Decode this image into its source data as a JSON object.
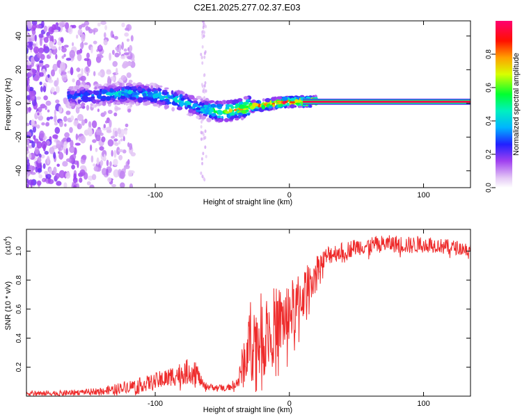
{
  "title": "C2E1.2025.277.02.37.E03",
  "colors": {
    "snr_line": "#ee2b2b",
    "colormap": [
      "#ffffff",
      "#d9a8f0",
      "#7a00e6",
      "#2020ff",
      "#00d8ff",
      "#00ff40",
      "#f0ff00",
      "#ff7a00",
      "#ff0000",
      "#ff0080"
    ]
  },
  "chart_data": [
    {
      "type": "heatmap",
      "title": "C2E1.2025.277.02.37.E03",
      "xlabel": "Height of straight line (km)",
      "ylabel": "Frequency (Hz)",
      "xlim": [
        -196,
        135
      ],
      "ylim": [
        -50,
        49
      ],
      "x_ticks": [
        "-100",
        "0",
        "100"
      ],
      "y_ticks": [
        "40",
        "20",
        "0",
        "-20",
        "-40"
      ],
      "colorbar": {
        "label": "Normalized spectral amplitude",
        "range": [
          0,
          1
        ],
        "ticks": [
          "0.0",
          "0.2",
          "0.4",
          "0.6",
          "0.8"
        ]
      },
      "ridge": {
        "x": [
          -160,
          -140,
          -120,
          -100,
          -90,
          -80,
          -70,
          -60,
          -50,
          -40,
          -30,
          -20,
          -10,
          0,
          10,
          20,
          40,
          80,
          135
        ],
        "frequency": [
          4,
          5,
          6,
          5,
          3,
          1,
          -2,
          -4,
          -5,
          -4,
          -2,
          -1,
          0,
          1,
          1,
          1,
          1,
          1,
          1
        ],
        "amplitude": [
          0.35,
          0.4,
          0.45,
          0.45,
          0.5,
          0.5,
          0.4,
          0.55,
          0.7,
          0.75,
          0.85,
          0.9,
          0.95,
          1.0,
          1.0,
          1.0,
          1.0,
          1.0,
          1.0
        ]
      },
      "noise_region_x": [
        -196,
        -140
      ]
    },
    {
      "type": "line",
      "xlabel": "Height of straight line (km)",
      "ylabel": "SNR (10 * v/v)",
      "y_scale_label": "(x10",
      "y_scale_exp": "4",
      "xlim": [
        -196,
        135
      ],
      "ylim": [
        0,
        1.15
      ],
      "x_ticks": [
        "-100",
        "0",
        "100"
      ],
      "y_ticks": [
        "0.2",
        "0.4",
        "0.6",
        "0.8",
        "1.0"
      ],
      "series": [
        {
          "name": "SNR",
          "x": [
            -196,
            -170,
            -150,
            -135,
            -125,
            -110,
            -100,
            -90,
            -80,
            -70,
            -67,
            -64,
            -55,
            -45,
            -38,
            -35,
            -32,
            -28,
            -25,
            -20,
            -15,
            -10,
            -5,
            0,
            5,
            10,
            15,
            20,
            25,
            30,
            40,
            50,
            60,
            70,
            80,
            90,
            100,
            110,
            120,
            135
          ],
          "y": [
            0.02,
            0.02,
            0.03,
            0.04,
            0.06,
            0.08,
            0.1,
            0.13,
            0.16,
            0.18,
            0.12,
            0.07,
            0.06,
            0.06,
            0.1,
            0.2,
            0.32,
            0.4,
            0.38,
            0.42,
            0.45,
            0.5,
            0.52,
            0.58,
            0.62,
            0.7,
            0.78,
            0.88,
            0.93,
            0.98,
            1.0,
            1.03,
            1.04,
            1.05,
            1.05,
            1.04,
            1.05,
            1.04,
            1.03,
            1.01
          ],
          "jitter": [
            0.02,
            0.02,
            0.02,
            0.03,
            0.04,
            0.05,
            0.06,
            0.07,
            0.08,
            0.1,
            0.05,
            0.03,
            0.02,
            0.02,
            0.05,
            0.15,
            0.25,
            0.3,
            0.3,
            0.3,
            0.28,
            0.26,
            0.24,
            0.22,
            0.2,
            0.18,
            0.14,
            0.1,
            0.08,
            0.07,
            0.06,
            0.06,
            0.06,
            0.06,
            0.06,
            0.06,
            0.06,
            0.05,
            0.05,
            0.05
          ]
        }
      ]
    }
  ]
}
